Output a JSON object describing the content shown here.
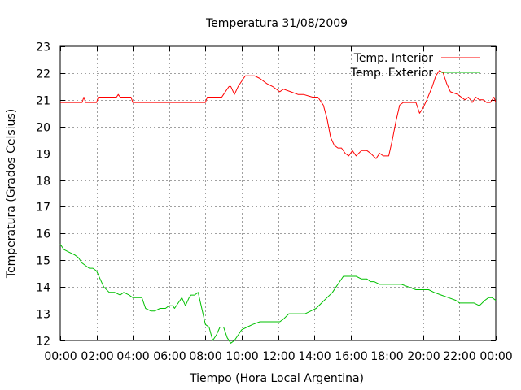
{
  "chart_data": {
    "type": "line",
    "title": "Temperatura 31/08/2009",
    "xlabel": "Tiempo (Hora Local Argentina)",
    "ylabel": "Temperatura (Grados Celsius)",
    "xlim": [
      0,
      24
    ],
    "ylim": [
      12,
      23
    ],
    "xtick_values": [
      0,
      2,
      4,
      6,
      8,
      10,
      12,
      14,
      16,
      18,
      20,
      22,
      24
    ],
    "xtick_labels": [
      "00:00",
      "02:00",
      "04:00",
      "06:00",
      "08:00",
      "10:00",
      "12:00",
      "14:00",
      "16:00",
      "18:00",
      "20:00",
      "22:00",
      "00:00"
    ],
    "ytick_values": [
      12,
      13,
      14,
      15,
      16,
      17,
      18,
      19,
      20,
      21,
      22,
      23
    ],
    "ytick_labels": [
      "12",
      "13",
      "14",
      "15",
      "16",
      "17",
      "18",
      "19",
      "20",
      "21",
      "22",
      "23"
    ],
    "grid": true,
    "legend_position": "top-right",
    "series": [
      {
        "name": "Temp. Interior",
        "color": "#ff0000",
        "x": [
          0,
          1.2,
          1.3,
          1.4,
          2.0,
          2.1,
          3.1,
          3.2,
          3.3,
          3.5,
          3.9,
          4.0,
          8.0,
          8.1,
          8.9,
          9.0,
          9.3,
          9.4,
          9.6,
          9.8,
          10.1,
          10.2,
          10.7,
          11.0,
          11.4,
          11.7,
          12.1,
          12.3,
          12.7,
          13.1,
          13.4,
          13.9,
          14.2,
          14.5,
          14.7,
          14.9,
          15.1,
          15.3,
          15.5,
          15.7,
          15.9,
          16.1,
          16.3,
          16.6,
          16.9,
          17.1,
          17.4,
          17.6,
          17.8,
          18.1,
          18.3,
          18.5,
          18.7,
          18.9,
          19.2,
          19.4,
          19.6,
          19.8,
          20.0,
          20.2,
          20.5,
          20.7,
          20.9,
          21.1,
          21.3,
          21.5,
          21.9,
          22.1,
          22.3,
          22.5,
          22.7,
          22.9,
          23.1,
          23.3,
          23.5,
          23.7,
          23.9,
          24.0
        ],
        "y": [
          20.9,
          20.9,
          21.1,
          20.9,
          20.9,
          21.1,
          21.1,
          21.2,
          21.1,
          21.1,
          21.1,
          20.9,
          20.9,
          21.1,
          21.1,
          21.2,
          21.5,
          21.5,
          21.2,
          21.5,
          21.8,
          21.9,
          21.9,
          21.8,
          21.6,
          21.5,
          21.3,
          21.4,
          21.3,
          21.2,
          21.2,
          21.1,
          21.1,
          20.8,
          20.3,
          19.6,
          19.3,
          19.2,
          19.2,
          19.0,
          18.9,
          19.1,
          18.9,
          19.1,
          19.1,
          19.0,
          18.8,
          19.0,
          18.9,
          18.9,
          19.5,
          20.2,
          20.8,
          20.9,
          20.9,
          20.9,
          20.9,
          20.5,
          20.7,
          21.0,
          21.5,
          21.9,
          22.1,
          22.0,
          21.6,
          21.3,
          21.2,
          21.1,
          21.0,
          21.1,
          20.9,
          21.1,
          21.0,
          21.0,
          20.9,
          20.9,
          21.1,
          20.9
        ]
      },
      {
        "name": "Temp. Exterior",
        "color": "#00c000",
        "x": [
          0,
          0.2,
          0.5,
          0.8,
          1.0,
          1.2,
          1.4,
          1.6,
          1.8,
          2.0,
          2.2,
          2.4,
          2.7,
          3.0,
          3.3,
          3.5,
          3.8,
          4.0,
          4.2,
          4.5,
          4.7,
          5.0,
          5.2,
          5.5,
          5.8,
          6.0,
          6.2,
          6.3,
          6.5,
          6.7,
          6.9,
          7.1,
          7.2,
          7.4,
          7.6,
          7.7,
          7.9,
          8.0,
          8.2,
          8.4,
          8.6,
          8.8,
          9.0,
          9.2,
          9.4,
          9.6,
          9.8,
          10.0,
          10.3,
          10.6,
          11.0,
          11.4,
          11.7,
          11.9,
          12.1,
          12.3,
          12.6,
          12.9,
          13.2,
          13.5,
          13.8,
          14.1,
          14.4,
          14.7,
          15.0,
          15.2,
          15.4,
          15.6,
          15.8,
          16.0,
          16.3,
          16.6,
          16.9,
          17.1,
          17.3,
          17.6,
          18.0,
          18.4,
          18.8,
          19.2,
          19.6,
          20.0,
          20.3,
          20.6,
          21.0,
          21.4,
          21.8,
          22.0,
          22.2,
          22.5,
          22.8,
          23.1,
          23.4,
          23.6,
          23.8,
          24.0
        ],
        "y": [
          15.6,
          15.4,
          15.3,
          15.2,
          15.1,
          14.9,
          14.8,
          14.7,
          14.7,
          14.6,
          14.3,
          14.0,
          13.8,
          13.8,
          13.7,
          13.8,
          13.7,
          13.6,
          13.6,
          13.6,
          13.2,
          13.1,
          13.1,
          13.2,
          13.2,
          13.3,
          13.3,
          13.2,
          13.4,
          13.6,
          13.3,
          13.6,
          13.7,
          13.7,
          13.8,
          13.5,
          12.9,
          12.6,
          12.5,
          12.0,
          12.2,
          12.5,
          12.5,
          12.1,
          11.9,
          12.0,
          12.2,
          12.4,
          12.5,
          12.6,
          12.7,
          12.7,
          12.7,
          12.7,
          12.7,
          12.8,
          13.0,
          13.0,
          13.0,
          13.0,
          13.1,
          13.2,
          13.4,
          13.6,
          13.8,
          14.0,
          14.2,
          14.4,
          14.4,
          14.4,
          14.4,
          14.3,
          14.3,
          14.2,
          14.2,
          14.1,
          14.1,
          14.1,
          14.1,
          14.0,
          13.9,
          13.9,
          13.9,
          13.8,
          13.7,
          13.6,
          13.5,
          13.4,
          13.4,
          13.4,
          13.4,
          13.3,
          13.5,
          13.6,
          13.6,
          13.5
        ]
      }
    ]
  }
}
